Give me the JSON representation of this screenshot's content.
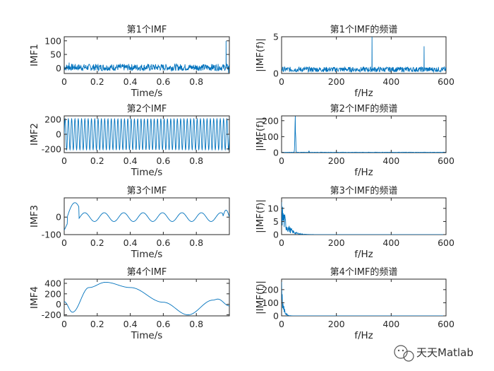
{
  "chart_data": [
    {
      "type": "line",
      "title": "第1个IMF",
      "xlabel": "Time/s",
      "ylabel": "IMF1",
      "xlim": [
        0,
        1
      ],
      "ylim": [
        -20,
        115
      ],
      "xticks": [
        "0",
        "0.2",
        "0.4",
        "0.6",
        "0.8"
      ],
      "yticks": [
        "0",
        "50",
        "100"
      ],
      "series": [
        {
          "signal": "noise",
          "x": [
            0,
            1
          ],
          "amplitude_range": [
            -10,
            15
          ],
          "spikes": [
            {
              "x": 0.03,
              "y": 20
            },
            {
              "x": 0.98,
              "y": 100
            },
            {
              "x": 0.995,
              "y": -18
            }
          ]
        }
      ]
    },
    {
      "type": "line",
      "title": "第1个IMF的频谱",
      "xlabel": "f/Hz",
      "ylabel": "|IMF(f)|",
      "xlim": [
        0,
        600
      ],
      "ylim": [
        0,
        5
      ],
      "xticks": [
        "0",
        "200",
        "400",
        "600"
      ],
      "yticks": [
        "0",
        "5"
      ],
      "series": [
        {
          "signal": "spectrum-noise",
          "x": [
            0,
            600
          ],
          "baseline_range": [
            0.2,
            0.9
          ],
          "peaks": [
            {
              "x": 330,
              "y": 5
            },
            {
              "x": 520,
              "y": 3.7
            }
          ]
        }
      ]
    },
    {
      "type": "line",
      "title": "第2个IMF",
      "xlabel": "Time/s",
      "ylabel": "IMF2",
      "xlim": [
        0,
        1
      ],
      "ylim": [
        -250,
        250
      ],
      "xticks": [
        "0",
        "0.2",
        "0.4",
        "0.6",
        "0.8"
      ],
      "yticks": [
        "200",
        "0",
        "-200"
      ],
      "series": [
        {
          "signal": "sine",
          "x": [
            0,
            1
          ],
          "amplitude": 210,
          "frequency_hz": 50
        }
      ]
    },
    {
      "type": "line",
      "title": "第2个IMF的频谱",
      "xlabel": "f/Hz",
      "ylabel": "|IMF(f)|",
      "xlim": [
        0,
        600
      ],
      "ylim": [
        0,
        230
      ],
      "xticks": [
        "0",
        "200",
        "400",
        "600"
      ],
      "yticks": [
        "0",
        "100",
        "200"
      ],
      "series": [
        {
          "signal": "spectrum-peak",
          "x": [
            0,
            600
          ],
          "peaks": [
            {
              "x": 50,
              "y": 228
            },
            {
              "x": 100,
              "y": 12
            }
          ]
        }
      ]
    },
    {
      "type": "line",
      "title": "第3个IMF",
      "xlabel": "Time/s",
      "ylabel": "IMF3",
      "xlim": [
        0,
        1
      ],
      "ylim": [
        -100,
        110
      ],
      "xticks": [
        "0",
        "0.2",
        "0.4",
        "0.6",
        "0.8"
      ],
      "yticks": [
        "0",
        "-100"
      ],
      "series": [
        {
          "signal": "oscillation",
          "x": [
            0,
            1
          ],
          "amplitude": 25,
          "frequency_hz": 8.5,
          "edge_values": [
            {
              "x": 0.03,
              "y": 90
            },
            {
              "x": 0.01,
              "y": -75
            },
            {
              "x": 0.985,
              "y": 40
            }
          ]
        }
      ]
    },
    {
      "type": "line",
      "title": "第3个IMF的频谱",
      "xlabel": "f/Hz",
      "ylabel": "|IMF(f)|",
      "xlim": [
        0,
        600
      ],
      "ylim": [
        0,
        14
      ],
      "xticks": [
        "0",
        "200",
        "400",
        "600"
      ],
      "yticks": [
        "0",
        "5",
        "10"
      ],
      "series": [
        {
          "signal": "spectrum-decay",
          "x": [
            0,
            600
          ],
          "peak": {
            "x": 5,
            "y": 14
          },
          "decay_to_hz": 60
        }
      ]
    },
    {
      "type": "line",
      "title": "第4个IMF",
      "xlabel": "Time/s",
      "ylabel": "IMF4",
      "xlim": [
        0,
        1
      ],
      "ylim": [
        -220,
        480
      ],
      "xticks": [
        "0",
        "0.2",
        "0.4",
        "0.6",
        "0.8"
      ],
      "yticks": [
        "400",
        "200",
        "0",
        "-200"
      ],
      "series": [
        {
          "signal": "slow-wave",
          "x": [
            0,
            1
          ],
          "points": [
            [
              0,
              50
            ],
            [
              0.05,
              -150
            ],
            [
              0.15,
              320
            ],
            [
              0.25,
              420
            ],
            [
              0.4,
              320
            ],
            [
              0.6,
              40
            ],
            [
              0.75,
              -200
            ],
            [
              0.9,
              80
            ],
            [
              0.93,
              100
            ],
            [
              1,
              -30
            ]
          ]
        }
      ]
    },
    {
      "type": "line",
      "title": "第4个IMF的频谱",
      "xlabel": "f/Hz",
      "ylabel": "|IMF(f)|",
      "xlim": [
        0,
        600
      ],
      "ylim": [
        0,
        280
      ],
      "xticks": [
        "0",
        "200",
        "400",
        "600"
      ],
      "yticks": [
        "0",
        "100",
        "200"
      ],
      "series": [
        {
          "signal": "spectrum-decay",
          "x": [
            0,
            600
          ],
          "peak": {
            "x": 2,
            "y": 280
          },
          "decay_to_hz": 20
        }
      ]
    }
  ],
  "watermark": {
    "text": "天天Matlab"
  },
  "colors": {
    "line": "#0072BD",
    "axis": "#262626"
  }
}
